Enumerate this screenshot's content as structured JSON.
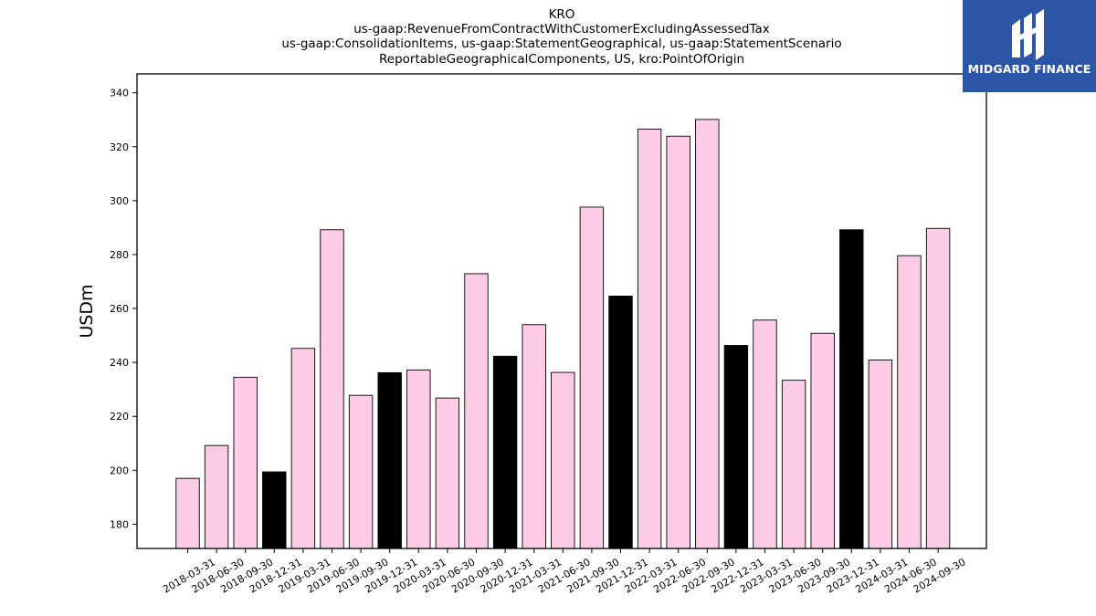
{
  "logo": {
    "text": "MIDGARD FINANCE",
    "background": "#2c55a6"
  },
  "chart_data": {
    "type": "bar",
    "title_lines": [
      "KRO",
      "us-gaap:RevenueFromContractWithCustomerExcludingAssessedTax",
      "us-gaap:ConsolidationItems, us-gaap:StatementGeographical, us-gaap:StatementScenario",
      "ReportableGeographicalComponents, US, kro:PointOfOrigin"
    ],
    "xlabel": "",
    "ylabel": "USDm",
    "ylim": [
      171,
      347
    ],
    "yticks": [
      180,
      200,
      220,
      240,
      260,
      280,
      300,
      320,
      340
    ],
    "grid": false,
    "colors": {
      "quarter": "#fccce6",
      "year_end": "#000000",
      "edge": "#000000"
    },
    "categories": [
      "2018-03-31",
      "2018-06-30",
      "2018-09-30",
      "2018-12-31",
      "2019-03-31",
      "2019-06-30",
      "2019-09-30",
      "2019-12-31",
      "2020-03-31",
      "2020-06-30",
      "2020-09-30",
      "2020-12-31",
      "2021-03-31",
      "2021-06-30",
      "2021-09-30",
      "2021-12-31",
      "2022-03-31",
      "2022-06-30",
      "2022-09-30",
      "2022-12-31",
      "2023-03-31",
      "2023-06-30",
      "2023-09-30",
      "2023-12-31",
      "2024-03-31",
      "2024-06-30",
      "2024-09-30"
    ],
    "values": [
      197.0,
      209.2,
      234.5,
      199.4,
      245.2,
      289.2,
      227.8,
      236.2,
      237.2,
      226.8,
      272.9,
      242.3,
      254.0,
      236.3,
      297.6,
      264.6,
      326.5,
      323.9,
      330.1,
      246.3,
      255.7,
      233.4,
      250.8,
      289.2,
      240.9,
      279.6,
      289.7
    ],
    "year_end_flags": [
      false,
      false,
      false,
      true,
      false,
      false,
      false,
      true,
      false,
      false,
      false,
      true,
      false,
      false,
      false,
      true,
      false,
      false,
      false,
      true,
      false,
      false,
      false,
      true,
      false,
      false,
      false
    ]
  }
}
